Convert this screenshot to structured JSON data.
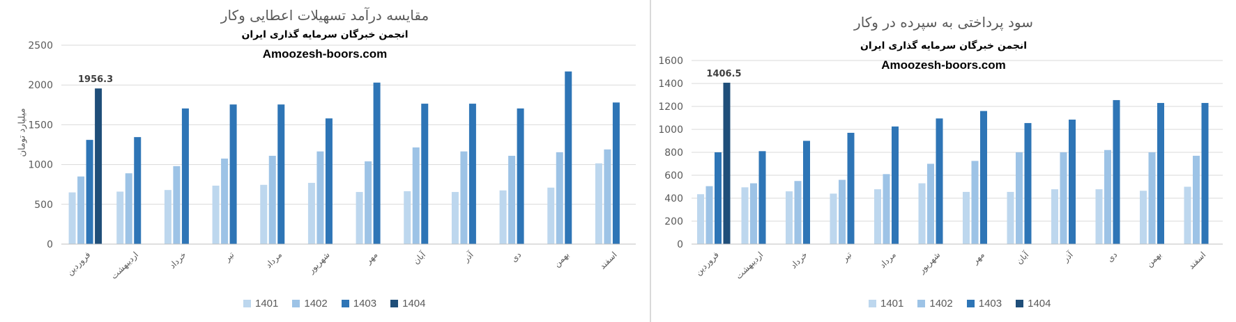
{
  "colors": [
    "#bdd7ee",
    "#9dc3e6",
    "#2e75b6",
    "#1f4e79"
  ],
  "charts": [
    {
      "title": "مقایسه درآمد تسهیلات اعطایی وکار",
      "subtitle": "انجمن خبرگان سرمایه گذاری ایران",
      "site": "Amoozesh-boors.com",
      "ylabel": "میلیارد تومان",
      "legend": [
        "1401",
        "1402",
        "1403",
        "1404"
      ]
    },
    {
      "title": "سود پرداختی به سپرده در وکار",
      "subtitle": "انجمن خبرگان سرمایه گذاری ایران",
      "site": "Amoozesh-boors.com",
      "ylabel": "",
      "legend": [
        "1401",
        "1402",
        "1403",
        "1404"
      ]
    }
  ],
  "chart_data": [
    {
      "type": "bar",
      "title": "مقایسه درآمد تسهیلات اعطایی وکار",
      "ylabel": "میلیارد تومان",
      "ylim": [
        0,
        2500
      ],
      "yticks": [
        0,
        500,
        1000,
        1500,
        2000,
        2500
      ],
      "grid": true,
      "legend_position": "bottom",
      "categories": [
        "فروردین",
        "اردیبهشت",
        "خرداد",
        "تیر",
        "مرداد",
        "شهریور",
        "مهر",
        "آبان",
        "آذر",
        "دی",
        "بهمن",
        "اسفند"
      ],
      "series": [
        {
          "name": "1401",
          "values": [
            650,
            660,
            680,
            735,
            745,
            770,
            655,
            665,
            655,
            675,
            710,
            1015
          ]
        },
        {
          "name": "1402",
          "values": [
            850,
            890,
            980,
            1075,
            1110,
            1165,
            1040,
            1215,
            1165,
            1110,
            1155,
            1190
          ]
        },
        {
          "name": "1403",
          "values": [
            1310,
            1345,
            1705,
            1755,
            1755,
            1580,
            2030,
            1765,
            1765,
            1705,
            2170,
            1780
          ]
        },
        {
          "name": "1404",
          "values": [
            1956.3,
            null,
            null,
            null,
            null,
            null,
            null,
            null,
            null,
            null,
            null,
            null
          ]
        }
      ],
      "data_labels": [
        {
          "series": "1404",
          "category": "فروردین",
          "text": "1956.3"
        }
      ]
    },
    {
      "type": "bar",
      "title": "سود پرداختی به سپرده در وکار",
      "ylabel": "",
      "ylim": [
        0,
        1600
      ],
      "yticks": [
        0,
        200,
        400,
        600,
        800,
        1000,
        1200,
        1400,
        1600
      ],
      "grid": true,
      "legend_position": "bottom",
      "categories": [
        "فروردین",
        "اردیبهشت",
        "خرداد",
        "تیر",
        "مرداد",
        "شهریور",
        "مهر",
        "آبان",
        "آذر",
        "دی",
        "بهمن",
        "اسفند"
      ],
      "series": [
        {
          "name": "1401",
          "values": [
            435,
            495,
            460,
            440,
            478,
            530,
            455,
            455,
            478,
            478,
            465,
            500
          ]
        },
        {
          "name": "1402",
          "values": [
            505,
            530,
            550,
            560,
            610,
            700,
            725,
            800,
            800,
            820,
            800,
            770
          ]
        },
        {
          "name": "1403",
          "values": [
            800,
            810,
            900,
            970,
            1025,
            1095,
            1160,
            1055,
            1085,
            1255,
            1230,
            1230
          ]
        },
        {
          "name": "1404",
          "values": [
            1406.5,
            null,
            null,
            null,
            null,
            null,
            null,
            null,
            null,
            null,
            null,
            null
          ]
        }
      ],
      "data_labels": [
        {
          "series": "1404",
          "category": "فروردین",
          "text": "1406.5"
        }
      ]
    }
  ]
}
